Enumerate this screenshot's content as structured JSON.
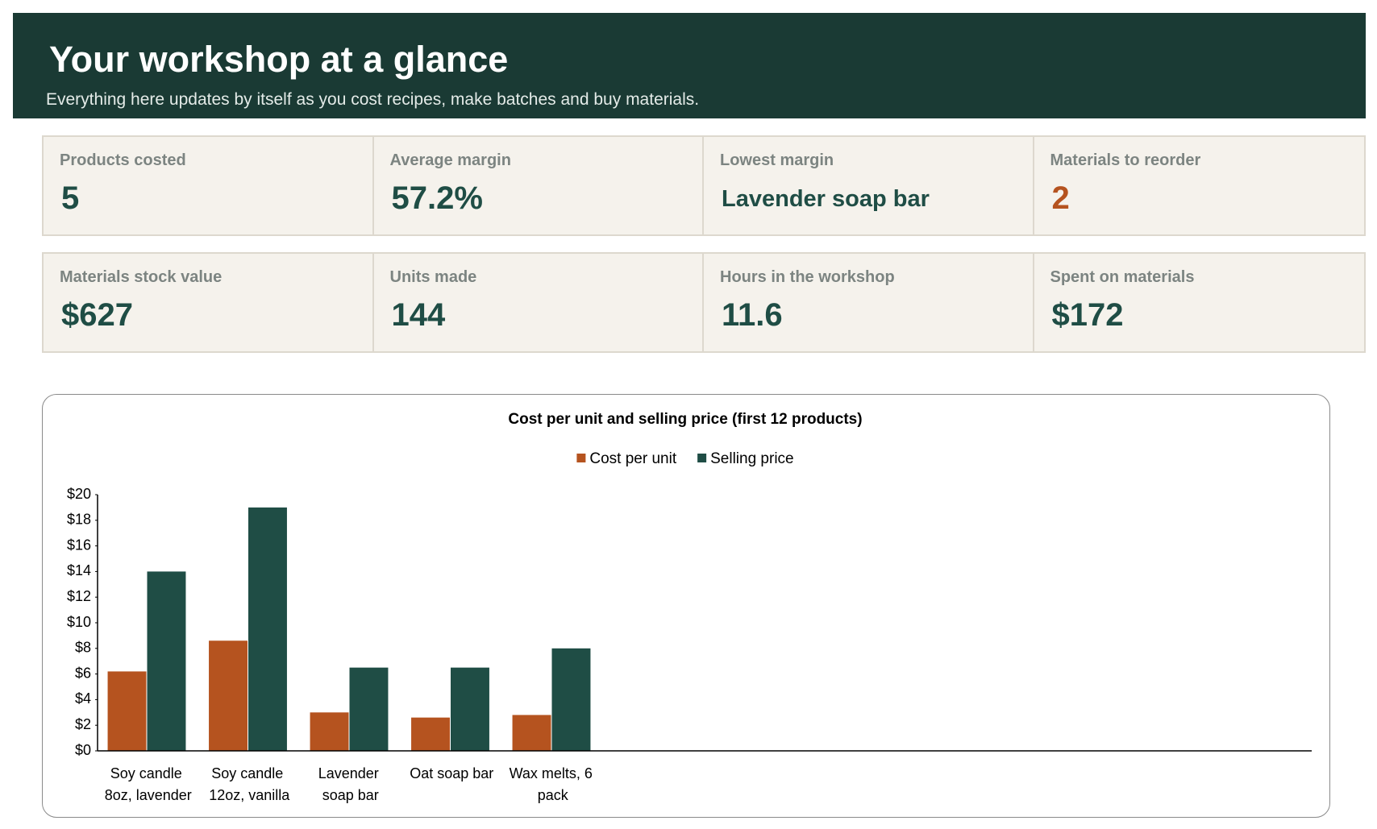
{
  "header": {
    "title": "Your workshop at a glance",
    "subtitle": "Everything here updates by itself as you cost recipes, make batches and buy materials."
  },
  "kpis": [
    {
      "label": "Products costed",
      "value": 5
    },
    {
      "label": "Average margin",
      "value": "57.2%"
    },
    {
      "label": "Lowest margin",
      "value": "Lavender soap bar"
    },
    {
      "label": "Materials to reorder",
      "value": 2
    },
    {
      "label": "Materials stock value",
      "value": "$627"
    },
    {
      "label": "Units made",
      "value": 144
    },
    {
      "label": "Hours in the workshop",
      "value": 11.6
    },
    {
      "label": "Spent on materials",
      "value": "$172"
    }
  ],
  "chart_data": {
    "type": "bar",
    "title": "Cost per unit and selling price (first 12 products)",
    "categories": [
      "Soy candle 8oz, lavender",
      "Soy candle 12oz, vanilla",
      "Lavender soap bar",
      "Oat soap bar",
      "Wax melts, 6 pack",
      null,
      null,
      null,
      null,
      null,
      null,
      null
    ],
    "series": [
      {
        "name": "Cost per unit",
        "color": "#b5531f",
        "values": [
          6.2,
          8.6,
          3.0,
          2.6,
          2.8,
          null,
          null,
          null,
          null,
          null,
          null,
          null
        ]
      },
      {
        "name": "Selling price",
        "color": "#1f4d45",
        "values": [
          14,
          19,
          6.5,
          6.5,
          8,
          null,
          null,
          null,
          null,
          null,
          null,
          null
        ]
      }
    ],
    "ylim": [
      0,
      20
    ],
    "yticks": [
      {
        "value": 0,
        "label": "$0"
      },
      {
        "value": 2,
        "label": "$2"
      },
      {
        "value": 4,
        "label": "$4"
      },
      {
        "value": 6,
        "label": "$6"
      },
      {
        "value": 8,
        "label": "$8"
      },
      {
        "value": 10,
        "label": "$10"
      },
      {
        "value": 12,
        "label": "$12"
      },
      {
        "value": 14,
        "label": "$14"
      },
      {
        "value": 16,
        "label": "$16"
      },
      {
        "value": 18,
        "label": "$18"
      },
      {
        "value": 20,
        "label": "$20"
      }
    ],
    "grid": false
  }
}
